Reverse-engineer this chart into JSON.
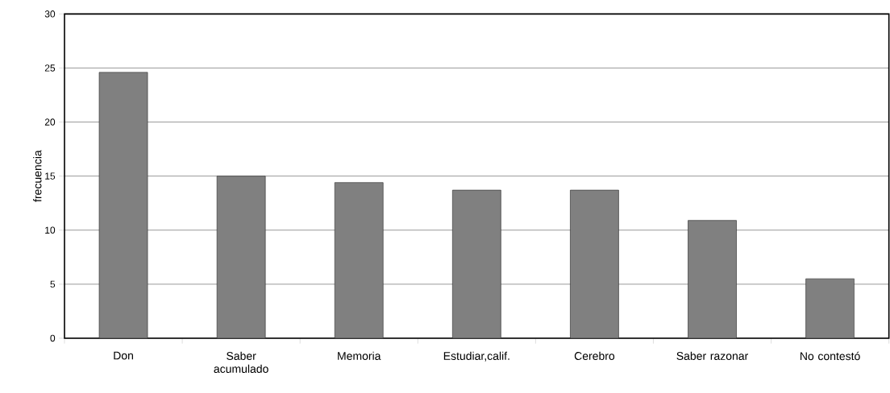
{
  "chart_data": {
    "type": "bar",
    "ylabel": "frecuencia",
    "categories": [
      "Don",
      "Saber acumulado",
      "Memoria",
      "Estudiar,calif.",
      "Cerebro",
      "Saber razonar",
      "No contestó"
    ],
    "values": [
      24.6,
      15.0,
      14.4,
      13.7,
      13.7,
      10.9,
      5.5
    ],
    "color": "#808080",
    "ylim": [
      0,
      30
    ],
    "yticks": [
      0,
      5,
      10,
      15,
      20,
      25,
      30
    ],
    "grid": "y"
  }
}
